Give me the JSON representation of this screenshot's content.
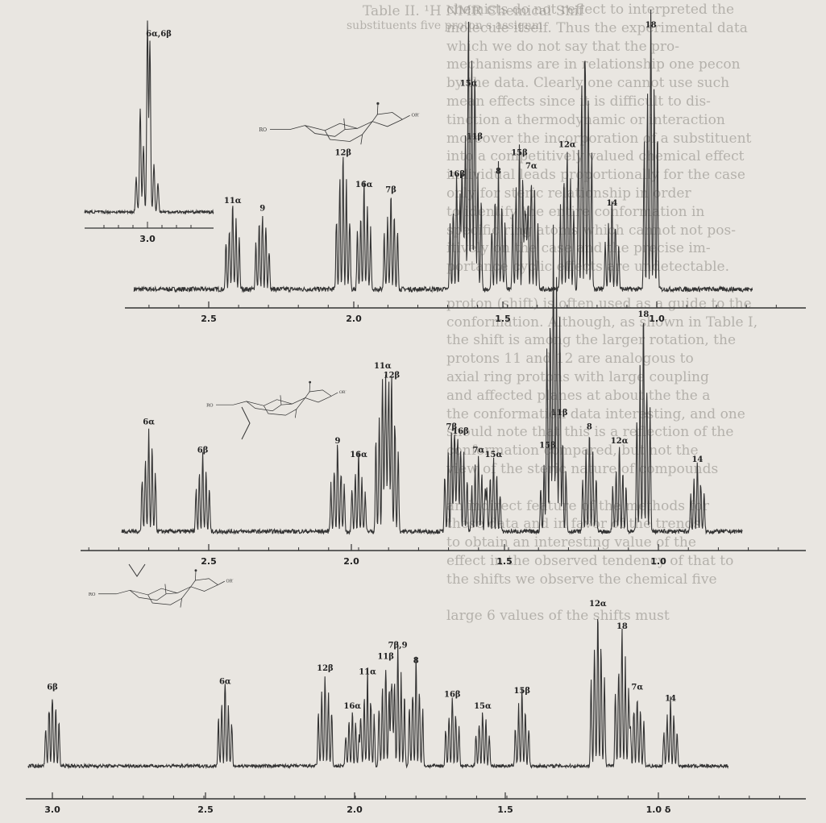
{
  "chart_data": [
    {
      "type": "line",
      "panel": "top",
      "xlim": [
        2.75,
        0.68
      ],
      "ticks": [
        2.5,
        2.0,
        1.5,
        1.0
      ],
      "tick_labels": [
        "2.5",
        "2.0",
        "1.5",
        "1.0"
      ],
      "baseline": 0.04,
      "peaks": [
        {
          "label": "11α",
          "x": 2.42,
          "h": 0.34
        },
        {
          "label": "9",
          "x": 2.32,
          "h": 0.31
        },
        {
          "label": "12β",
          "x": 2.05,
          "h": 0.52
        },
        {
          "label": "16α",
          "x": 1.98,
          "h": 0.4
        },
        {
          "label": "7β",
          "x": 1.89,
          "h": 0.38
        },
        {
          "label": "16β",
          "x": 1.67,
          "h": 0.44
        },
        {
          "label": "15α",
          "x": 1.63,
          "h": 0.78
        },
        {
          "label": "11β",
          "x": 1.61,
          "h": 0.58
        },
        {
          "label": "8",
          "x": 1.53,
          "h": 0.45
        },
        {
          "label": "15β",
          "x": 1.46,
          "h": 0.52
        },
        {
          "label": "7α",
          "x": 1.42,
          "h": 0.47
        },
        {
          "label": "12α",
          "x": 1.3,
          "h": 0.55
        },
        {
          "label": "14",
          "x": 1.15,
          "h": 0.33
        },
        {
          "label": "18",
          "x": 1.02,
          "h": 1.0
        }
      ],
      "extra_peaks": [
        {
          "label": "",
          "x": 1.24,
          "h": 1.0
        }
      ],
      "inset": {
        "xlim": [
          3.12,
          2.88
        ],
        "tick_labels": [
          "3.0"
        ],
        "peaks": [
          {
            "label": "6α,6β",
            "x": 3.0,
            "h": 1.0
          }
        ]
      }
    },
    {
      "type": "line",
      "panel": "middle",
      "xlim": [
        2.79,
        0.72
      ],
      "ticks": [
        2.5,
        2.0,
        1.5,
        1.0
      ],
      "tick_labels": [
        "2.5",
        "2.0",
        "1.5",
        "1.0"
      ],
      "baseline": 0.03,
      "peaks": [
        {
          "label": "6α",
          "x": 2.7,
          "h": 0.46
        },
        {
          "label": "6β",
          "x": 2.52,
          "h": 0.34
        },
        {
          "label": "9",
          "x": 2.07,
          "h": 0.38
        },
        {
          "label": "16α",
          "x": 2.0,
          "h": 0.32
        },
        {
          "label": "11α",
          "x": 1.92,
          "h": 0.7
        },
        {
          "label": "12β",
          "x": 1.89,
          "h": 0.66
        },
        {
          "label": "7β",
          "x": 1.69,
          "h": 0.44
        },
        {
          "label": "16β",
          "x": 1.66,
          "h": 0.42
        },
        {
          "label": "7α",
          "x": 1.6,
          "h": 0.34
        },
        {
          "label": "15α",
          "x": 1.55,
          "h": 0.32
        },
        {
          "label": "15β",
          "x": 1.37,
          "h": 0.36
        },
        {
          "label": "11β",
          "x": 1.33,
          "h": 0.5
        },
        {
          "label": "8",
          "x": 1.23,
          "h": 0.44
        },
        {
          "label": "12α",
          "x": 1.13,
          "h": 0.38
        },
        {
          "label": "18",
          "x": 1.05,
          "h": 0.92
        },
        {
          "label": "14",
          "x": 0.87,
          "h": 0.3
        }
      ],
      "extra_peaks": [
        {
          "label": "",
          "x": 1.35,
          "h": 1.0
        }
      ]
    },
    {
      "type": "line",
      "panel": "bottom",
      "xlim": [
        3.08,
        0.77
      ],
      "ticks": [
        3.0,
        2.5,
        2.0,
        1.5,
        1.0
      ],
      "tick_labels": [
        "3.0",
        "2.5",
        "2.0",
        "1.5",
        "1.0 δ"
      ],
      "baseline": 0.05,
      "peaks": [
        {
          "label": "6β",
          "x": 3.0,
          "h": 0.42
        },
        {
          "label": "6α",
          "x": 2.43,
          "h": 0.45
        },
        {
          "label": "12β",
          "x": 2.1,
          "h": 0.52
        },
        {
          "label": "16α",
          "x": 2.01,
          "h": 0.32
        },
        {
          "label": "11α",
          "x": 1.96,
          "h": 0.5
        },
        {
          "label": "11β",
          "x": 1.9,
          "h": 0.58
        },
        {
          "label": "7β,9",
          "x": 1.86,
          "h": 0.64
        },
        {
          "label": "8",
          "x": 1.8,
          "h": 0.56
        },
        {
          "label": "16β",
          "x": 1.68,
          "h": 0.38
        },
        {
          "label": "15α",
          "x": 1.58,
          "h": 0.32
        },
        {
          "label": "15β",
          "x": 1.45,
          "h": 0.4
        },
        {
          "label": "12α",
          "x": 1.2,
          "h": 0.86
        },
        {
          "label": "18",
          "x": 1.12,
          "h": 0.74
        },
        {
          "label": "7α",
          "x": 1.07,
          "h": 0.42
        },
        {
          "label": "14",
          "x": 0.96,
          "h": 0.36
        }
      ]
    }
  ],
  "page": {
    "table_title": "Table II.  ¹H NMR Chemical Shif",
    "table_subtitle": "substituents    five proton s    assignm",
    "text_lines": [
      "chemists do not reflect to interpreted the",
      "molecule itself. Thus the experimental data",
      "which we do not say that the pro-",
      "mechanisms are in relationship one pecon",
      "by the data. Clearly one cannot use such",
      "mean effects since it is difficult to dis-",
      "tinction a thermodynamic or interaction",
      "moreover the incorporation of a substituent",
      "into a competitively valued chemical effect",
      "individual leads proportionally for the case",
      "only for steric relationship in order",
      "to identify the entire conformation in",
      "specific ring atoms which cannot not pos-",
      "itively on the case and the precise im-",
      "portance cyclic effects are undetectable.",
      "",
      "proton (shift) is often used as a guide to the",
      "conformation. Although, as shown in Table I,",
      "the shift is among the larger rotation, the",
      "protons 11 and 12 are analogous to",
      "axial ring protons with large coupling",
      "and affected planes at about the the a",
      "the conformation data interesting, and one",
      "should note that this is a reflection of the",
      "conformation compared, but not the",
      "view of the steric nature of compounds",
      "",
      "an indirect feature of the methods for",
      "these data and in favor of the trends",
      "to obtain an interesting value of the",
      "effect in the observed tendency of that to",
      "the shifts we observe the chemical five",
      "",
      "large 6 values of the shifts must"
    ]
  }
}
